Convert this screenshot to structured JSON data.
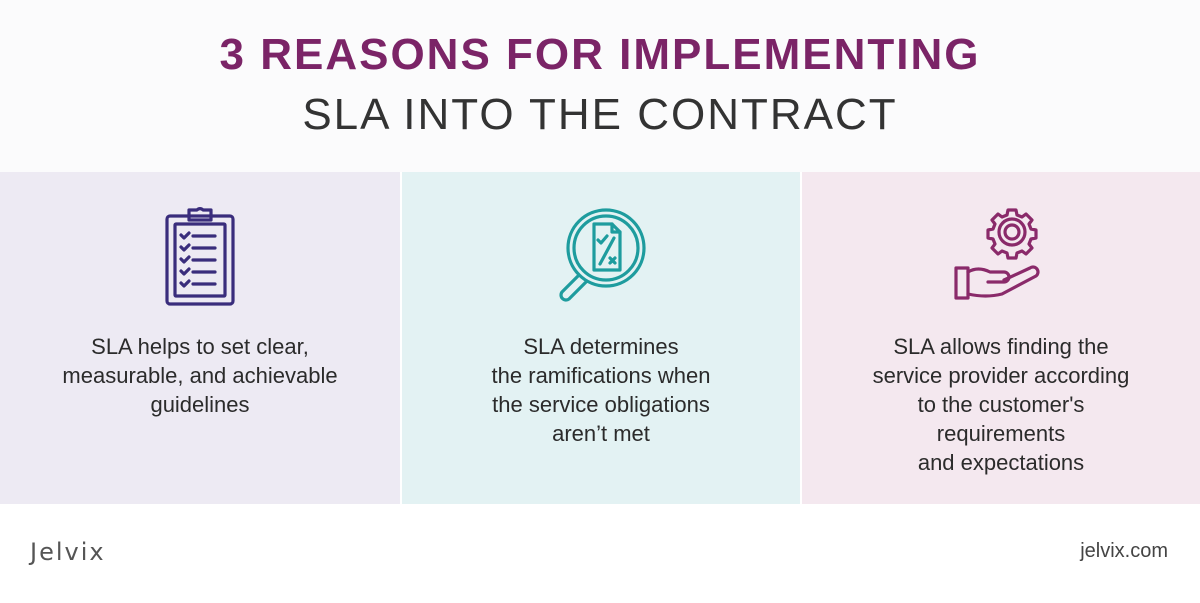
{
  "header": {
    "title_line1": "3 REASONS FOR IMPLEMENTING",
    "title_line2": "SLA INTO THE CONTRACT"
  },
  "colors": {
    "accent_purple": "#7b2467",
    "icon_navy": "#3a2d7c",
    "icon_teal": "#1e9c9e",
    "icon_plum": "#8a2a6a",
    "panel_1_bg": "#edeaf3",
    "panel_2_bg": "#e3f2f3",
    "panel_3_bg": "#f4e8ef"
  },
  "panels": [
    {
      "icon": "clipboard-checklist-icon",
      "text": "SLA helps to set clear,\nmeasurable, and achievable\nguidelines"
    },
    {
      "icon": "magnifier-document-icon",
      "text": "SLA determines\nthe ramifications when\nthe service obligations\naren’t met"
    },
    {
      "icon": "gear-on-hand-icon",
      "text": "SLA allows finding the\nservice provider according\nto the customer's\nrequirements\nand expectations"
    }
  ],
  "footer": {
    "logo": "Jelvix",
    "site": "jelvix.com"
  }
}
